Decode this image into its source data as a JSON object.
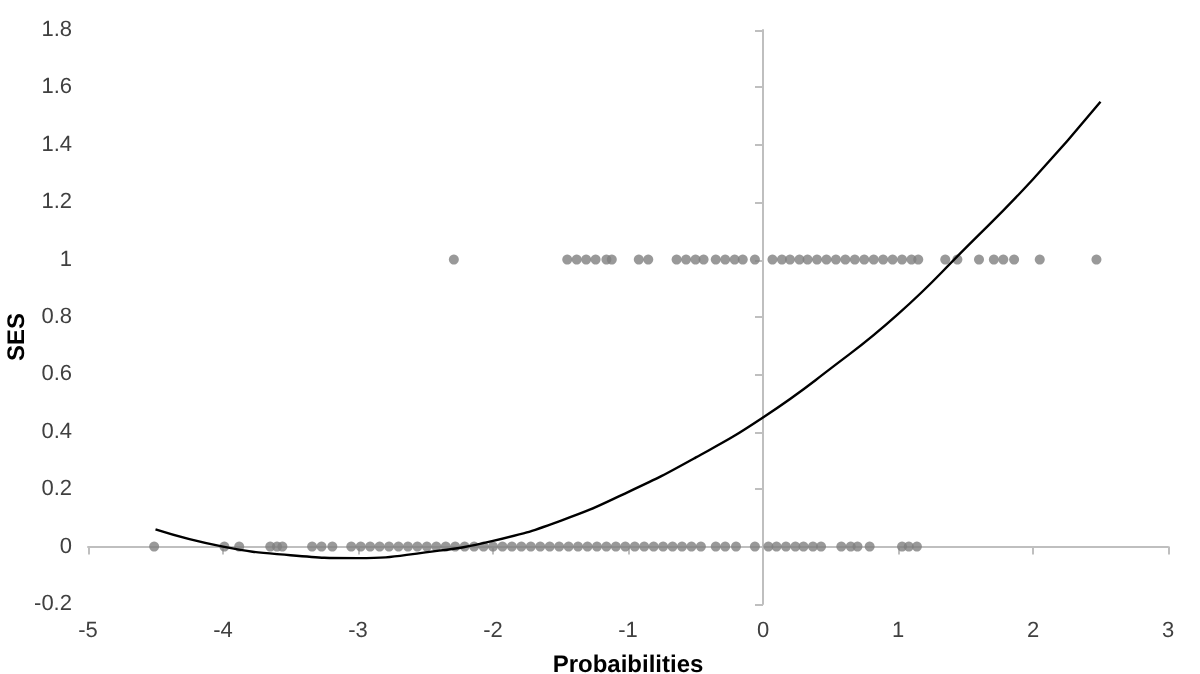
{
  "chart_data": {
    "type": "scatter",
    "xlabel": "Probaibilities",
    "ylabel": "SES",
    "xlim": [
      -5,
      3
    ],
    "xticks": [
      -5,
      -4,
      -3,
      -2,
      -1,
      0,
      1,
      2,
      3
    ],
    "ylim": [
      -0.2,
      1.8
    ],
    "yticks": [
      -0.2,
      0,
      0.2,
      0.4,
      0.6,
      0.8,
      1,
      1.2,
      1.4,
      1.6,
      1.8
    ],
    "marker": "circle",
    "series": [
      {
        "color": "#7f7f7f",
        "x": [
          -4.51,
          -3.99,
          -3.88,
          -3.65,
          -3.6,
          -3.56,
          -3.34,
          -3.27,
          -3.19,
          -3.05,
          -2.98,
          -2.91,
          -2.84,
          -2.77,
          -2.7,
          -2.63,
          -2.56,
          -2.49,
          -2.42,
          -2.35,
          -2.28,
          -2.21,
          -2.14,
          -2.07,
          -2.0,
          -1.93,
          -1.86,
          -1.79,
          -1.72,
          -1.65,
          -1.58,
          -1.51,
          -1.44,
          -1.37,
          -1.3,
          -1.23,
          -1.16,
          -1.09,
          -1.02,
          -0.95,
          -0.88,
          -0.81,
          -0.74,
          -0.67,
          -0.6,
          -0.53,
          -0.46,
          -0.35,
          -0.28,
          -0.2,
          -0.06,
          0.04,
          0.1,
          0.17,
          0.24,
          0.3,
          0.37,
          0.43,
          0.58,
          0.65,
          0.7,
          0.79,
          1.03,
          1.08,
          1.14
        ],
        "values": [
          0,
          0,
          0,
          0,
          0,
          0,
          0,
          0,
          0,
          0,
          0,
          0,
          0,
          0,
          0,
          0,
          0,
          0,
          0,
          0,
          0,
          0,
          0,
          0,
          0,
          0,
          0,
          0,
          0,
          0,
          0,
          0,
          0,
          0,
          0,
          0,
          0,
          0,
          0,
          0,
          0,
          0,
          0,
          0,
          0,
          0,
          0,
          0,
          0,
          0,
          0,
          0,
          0,
          0,
          0,
          0,
          0,
          0,
          0,
          0,
          0,
          0,
          0,
          0,
          0
        ]
      },
      {
        "color": "#7f7f7f",
        "x": [
          -2.29,
          -1.45,
          -1.38,
          -1.31,
          -1.24,
          -1.16,
          -1.12,
          -0.92,
          -0.85,
          -0.64,
          -0.57,
          -0.5,
          -0.44,
          -0.35,
          -0.28,
          -0.21,
          -0.15,
          -0.06,
          0.07,
          0.14,
          0.2,
          0.27,
          0.33,
          0.4,
          0.47,
          0.54,
          0.61,
          0.68,
          0.75,
          0.82,
          0.89,
          0.96,
          1.03,
          1.1,
          1.15,
          1.35,
          1.44,
          1.6,
          1.71,
          1.78,
          1.86,
          2.05,
          2.47
        ],
        "values": [
          1,
          1,
          1,
          1,
          1,
          1,
          1,
          1,
          1,
          1,
          1,
          1,
          1,
          1,
          1,
          1,
          1,
          1,
          1,
          1,
          1,
          1,
          1,
          1,
          1,
          1,
          1,
          1,
          1,
          1,
          1,
          1,
          1,
          1,
          1,
          1,
          1,
          1,
          1,
          1,
          1,
          1,
          1
        ]
      },
      {
        "type": "line",
        "color": "#000000",
        "marker": "none",
        "line_style": "solid",
        "x": [
          -4.5,
          -4,
          -3.5,
          -3,
          -2.5,
          -2,
          -1.5,
          -1,
          -0.5,
          0,
          0.5,
          1,
          1.5,
          2,
          2.5
        ],
        "values": [
          0.06,
          0.0,
          -0.03,
          -0.04,
          -0.02,
          0.02,
          0.09,
          0.19,
          0.31,
          0.45,
          0.62,
          0.81,
          1.04,
          1.28,
          1.55
        ]
      }
    ]
  }
}
